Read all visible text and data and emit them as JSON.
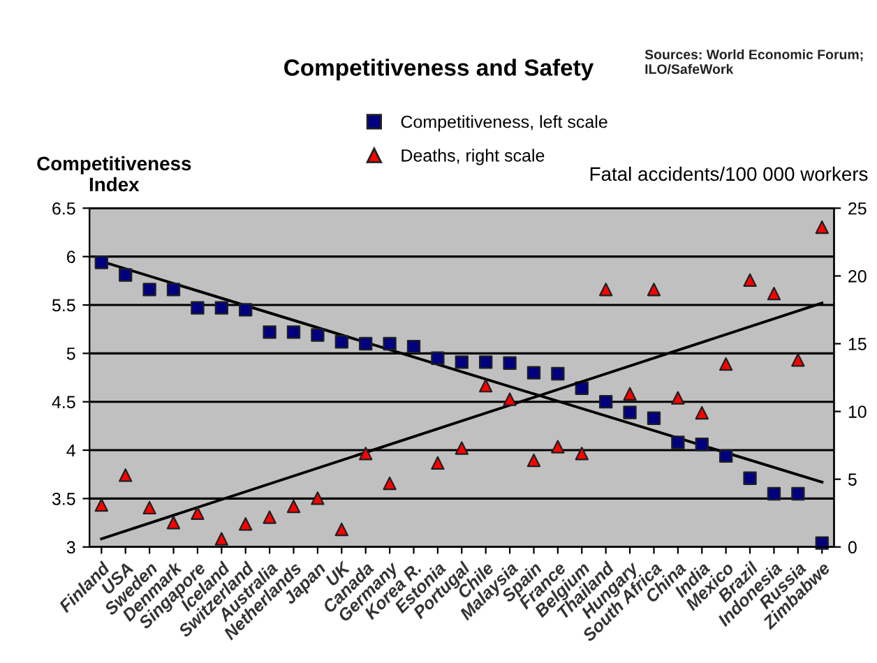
{
  "chart_data": {
    "type": "scatter",
    "title": "Competitiveness and Safety",
    "annotations": [
      "Sources: World Economic Forum;\nILO/SafeWork"
    ],
    "ylabel": "Competitiveness\nIndex",
    "y2label": "Fatal accidents/100 000 workers",
    "categories": [
      "Finland",
      "USA",
      "Sweden",
      "Denmark",
      "Singapore",
      "Iceland",
      "Switzerland",
      "Australia",
      "Netherlands",
      "Japan",
      "UK",
      "Canada",
      "Germany",
      "Korea R.",
      "Estonia",
      "Portugal",
      "Chile",
      "Malaysia",
      "Spain",
      "France",
      "Belgium",
      "Thailand",
      "Hungary",
      "South Africa",
      "China",
      "India",
      "Mexico",
      "Brazil",
      "Indonesia",
      "Russia",
      "Zimbabwe"
    ],
    "series": [
      {
        "name": "Competitiveness, left scale",
        "marker": "square",
        "color": "#000080",
        "values": [
          5.94,
          5.81,
          5.66,
          5.66,
          5.47,
          5.47,
          5.45,
          5.22,
          5.22,
          5.19,
          5.12,
          5.1,
          5.1,
          5.07,
          4.95,
          4.91,
          4.91,
          4.9,
          4.8,
          4.79,
          4.64,
          4.5,
          4.39,
          4.33,
          4.08,
          4.06,
          3.94,
          3.71,
          3.55,
          3.55,
          3.04
        ]
      },
      {
        "name": "Deaths, right scale",
        "marker": "triangle",
        "axis": "y2",
        "color": "#ff0000",
        "values": [
          3.1,
          5.3,
          2.9,
          1.8,
          2.5,
          0.6,
          1.7,
          2.2,
          3.0,
          3.6,
          1.3,
          6.9,
          4.7,
          null,
          6.2,
          7.3,
          11.9,
          10.9,
          6.4,
          7.4,
          6.9,
          19.0,
          11.3,
          19.0,
          11.0,
          9.9,
          13.5,
          19.7,
          18.7,
          13.8,
          23.6
        ]
      },
      {
        "type": "line",
        "color": "#000000",
        "x": [
          "Finland",
          "Zimbabwe"
        ],
        "values": [
          5.95,
          3.67
        ]
      },
      {
        "type": "line",
        "color": "#000000",
        "axis": "y2",
        "x": [
          "Finland",
          "Zimbabwe"
        ],
        "values": [
          0.6,
          18.0
        ]
      }
    ],
    "ylim": [
      3,
      6.5
    ],
    "yticks": [
      3,
      3.5,
      4,
      4.5,
      5,
      5.5,
      6,
      6.5
    ],
    "y2lim": [
      0,
      25
    ],
    "y2ticks": [
      0,
      5,
      10,
      15,
      20,
      25
    ],
    "grid": "y",
    "legend": "top"
  }
}
